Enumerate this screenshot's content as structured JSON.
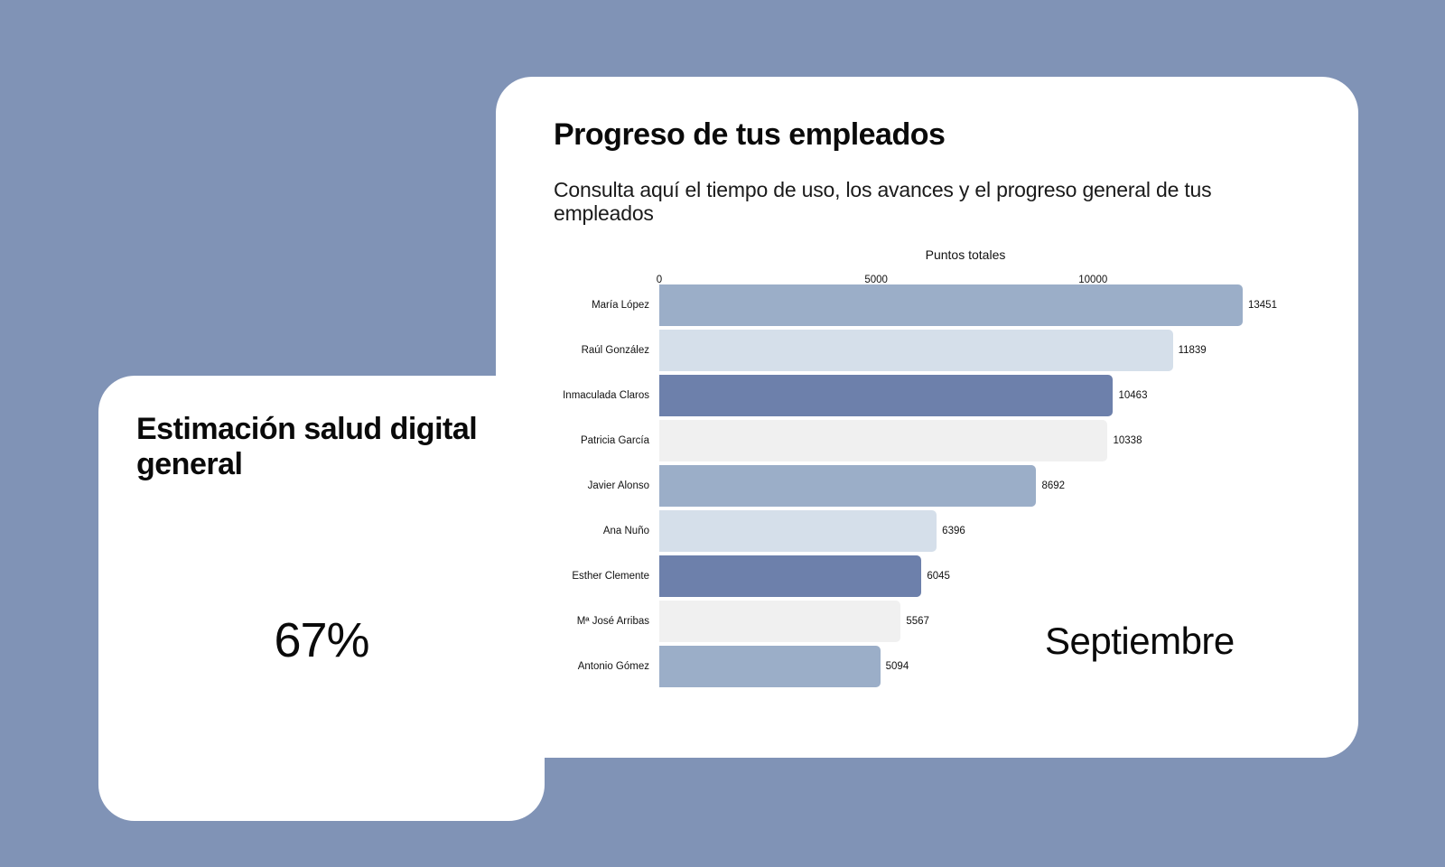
{
  "progress_card": {
    "title": "Progreso de tus empleados",
    "subtitle": "Consulta aquí el tiempo de uso, los avances y el progreso general de tus empleados",
    "month": "Septiembre"
  },
  "health_card": {
    "title": "Estimación salud digital general",
    "value": "67%"
  },
  "colors": {
    "background": "#8093b6",
    "card": "#ffffff",
    "bar_mid_blue": "#9baec8",
    "bar_light_blue": "#d5dfea",
    "bar_dark_blue": "#6d80ab",
    "bar_light_gray": "#f0f0f0"
  },
  "chart_data": {
    "type": "bar",
    "orientation": "horizontal",
    "title": "",
    "xlabel": "Puntos totales",
    "ylabel": "",
    "xlim": [
      0,
      13451
    ],
    "x_ticks": [
      "0",
      "5000",
      "10000"
    ],
    "x_axis_position": "top",
    "grid": false,
    "legend": "none",
    "categories": [
      "María López",
      "Raúl González",
      "Inmaculada Claros",
      "Patricia García",
      "Javier Alonso",
      "Ana Nuño",
      "Esther Clemente",
      "Mª José Arribas",
      "Antonio Gómez"
    ],
    "values": [
      13451,
      11839,
      10463,
      10338,
      8692,
      6396,
      6045,
      5567,
      5094
    ],
    "value_labels": [
      "13451",
      "11839",
      "10463",
      "10338",
      "8692",
      "6396",
      "6045",
      "5567",
      "5094"
    ],
    "bar_colors": [
      "#9baec8",
      "#d5dfea",
      "#6d80ab",
      "#f0f0f0",
      "#9baec8",
      "#d5dfea",
      "#6d80ab",
      "#f0f0f0",
      "#9baec8"
    ],
    "annotation": "Septiembre"
  }
}
